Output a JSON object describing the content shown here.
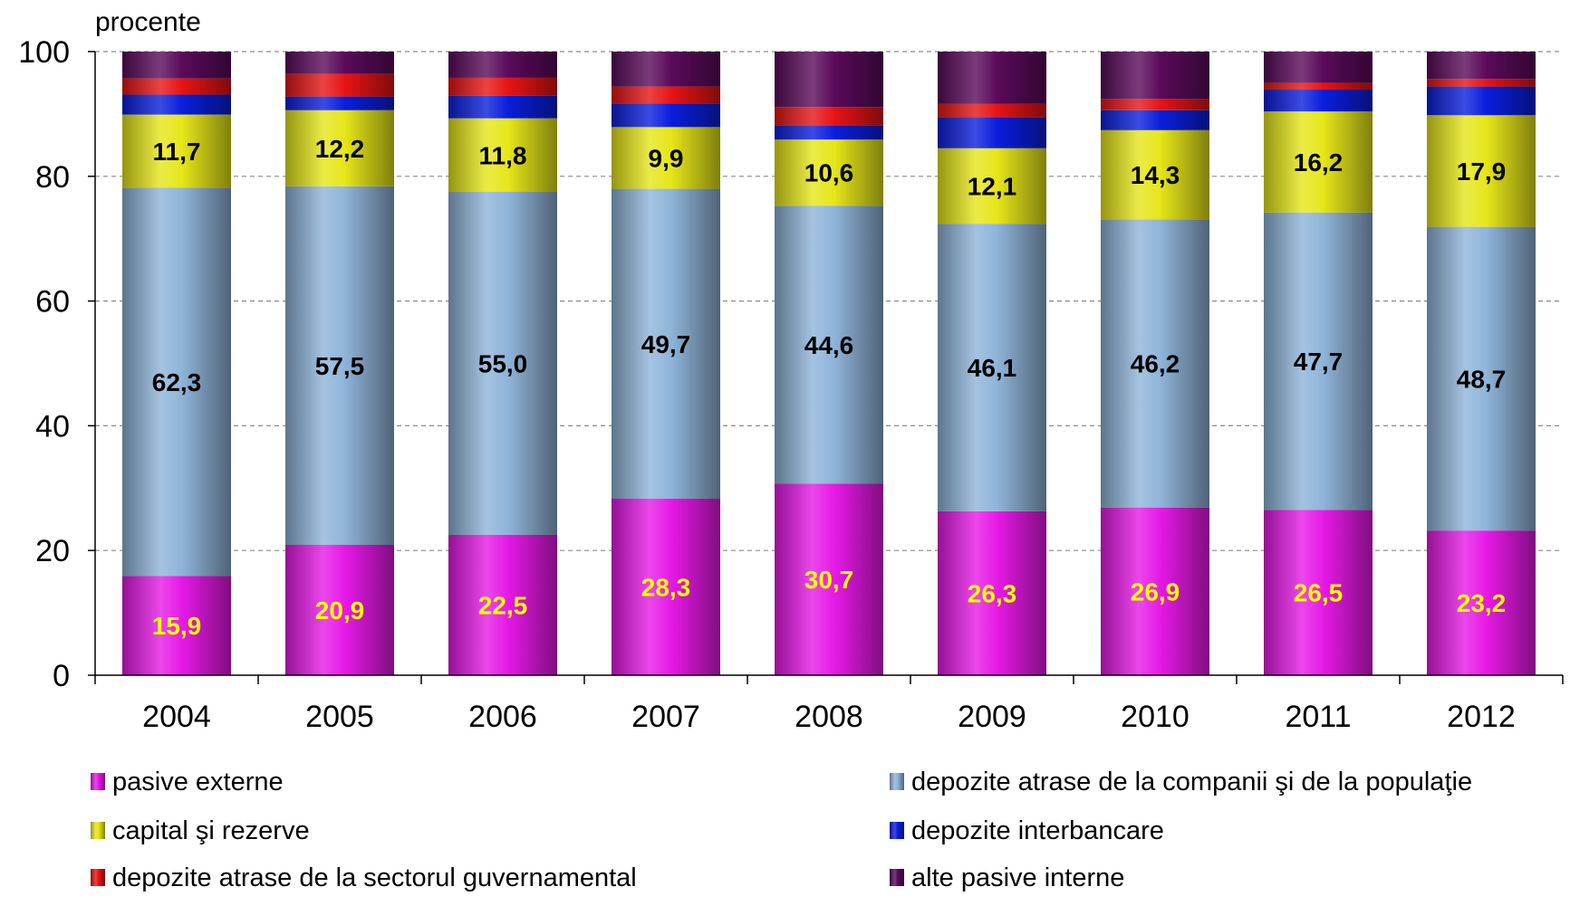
{
  "chart_data": {
    "type": "bar",
    "stacked": true,
    "ylabel": "procente",
    "ylim": [
      0,
      100
    ],
    "yticks": [
      0,
      20,
      40,
      60,
      80,
      100
    ],
    "grid": "horizontal dashed",
    "legend_position": "bottom",
    "categories": [
      "2004",
      "2005",
      "2006",
      "2007",
      "2008",
      "2009",
      "2010",
      "2011",
      "2012"
    ],
    "series": [
      {
        "name": "pasive externe",
        "color": "#e619e6",
        "label_color": "#ffff00",
        "show_labels": true,
        "values": [
          15.9,
          20.9,
          22.5,
          28.3,
          30.7,
          26.3,
          26.9,
          26.5,
          23.2
        ],
        "labels": [
          "15,9",
          "20,9",
          "22,5",
          "28,3",
          "30,7",
          "26,3",
          "26,9",
          "26,5",
          "23,2"
        ]
      },
      {
        "name": "depozite atrase de la companii şi de la populaţie",
        "color": "#8fb4d9",
        "label_color": "#000000",
        "show_labels": true,
        "values": [
          62.3,
          57.5,
          55.0,
          49.7,
          44.6,
          46.1,
          46.2,
          47.7,
          48.7
        ],
        "labels": [
          "62,3",
          "57,5",
          "55,0",
          "49,7",
          "44,6",
          "46,1",
          "46,2",
          "47,7",
          "48,7"
        ]
      },
      {
        "name": "capital şi rezerve",
        "color": "#e6e619",
        "label_color": "#000000",
        "show_labels": true,
        "values": [
          11.7,
          12.2,
          11.8,
          9.9,
          10.6,
          12.1,
          14.3,
          16.2,
          17.9
        ],
        "labels": [
          "11,7",
          "12,2",
          "11,8",
          "9,9",
          "10,6",
          "12,1",
          "14,3",
          "16,2",
          "17,9"
        ]
      },
      {
        "name": "depozite interbancare",
        "color": "#0a1edc",
        "label_color": "#ffffff",
        "show_labels": false,
        "values": [
          3.2,
          2.2,
          3.6,
          3.8,
          2.3,
          5.0,
          3.2,
          3.5,
          4.6
        ]
      },
      {
        "name": "depozite atrase de la sectorul guvernamental",
        "color": "#e61414",
        "label_color": "#ffffff",
        "show_labels": false,
        "values": [
          2.6,
          3.6,
          2.9,
          2.7,
          2.9,
          2.1,
          1.8,
          1.1,
          1.2
        ]
      },
      {
        "name": "alte pasive interne",
        "color": "#5a0a5a",
        "label_color": "#ffffff",
        "show_labels": false,
        "values": [
          4.3,
          3.6,
          4.2,
          5.6,
          8.9,
          8.4,
          7.6,
          5.0,
          4.4
        ]
      }
    ],
    "legend": {
      "columns": [
        [
          "pasive externe",
          "capital şi rezerve",
          "depozite atrase de la sectorul guvernamental"
        ],
        [
          "depozite atrase de la companii şi de la populaţie",
          "depozite interbancare",
          "alte pasive interne"
        ]
      ]
    }
  }
}
